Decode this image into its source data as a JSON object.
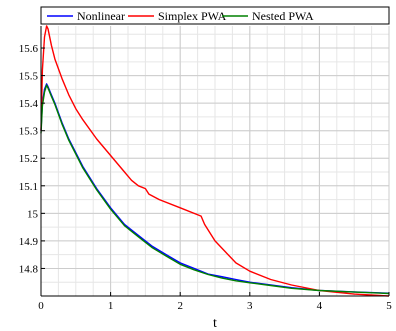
{
  "chart_data": {
    "type": "line",
    "xlabel": "t",
    "ylabel": "",
    "xlim": [
      0,
      5
    ],
    "ylim": [
      14.7,
      15.68
    ],
    "xticks": [
      0,
      1,
      2,
      3,
      4,
      5
    ],
    "yticks": [
      14.8,
      14.9,
      15,
      15.1,
      15.2,
      15.3,
      15.4,
      15.5,
      15.6
    ],
    "ytick_labels": [
      "14.8",
      "14.9",
      "15",
      "15.1",
      "15.2",
      "15.3",
      "15.4",
      "15.5",
      "15.6"
    ],
    "grid": true,
    "legend_position": "top",
    "series": [
      {
        "name": "Nonlinear",
        "color": "#0000ff",
        "x": [
          0,
          0.02,
          0.05,
          0.08,
          0.1,
          0.15,
          0.2,
          0.3,
          0.4,
          0.5,
          0.6,
          0.8,
          1.0,
          1.2,
          1.4,
          1.6,
          1.8,
          2.0,
          2.2,
          2.4,
          2.6,
          2.8,
          3.0,
          3.3,
          3.6,
          4.0,
          4.5,
          5.0
        ],
        "y": [
          15.3,
          15.4,
          15.45,
          15.47,
          15.46,
          15.43,
          15.4,
          15.33,
          15.27,
          15.22,
          15.17,
          15.09,
          15.02,
          14.96,
          14.92,
          14.88,
          14.85,
          14.82,
          14.8,
          14.78,
          14.77,
          14.76,
          14.75,
          14.74,
          14.73,
          14.72,
          14.715,
          14.71
        ]
      },
      {
        "name": "Simplex PWA",
        "color": "#ff0000",
        "x": [
          0,
          0.02,
          0.05,
          0.08,
          0.1,
          0.15,
          0.2,
          0.3,
          0.4,
          0.5,
          0.6,
          0.8,
          1.0,
          1.2,
          1.3,
          1.4,
          1.5,
          1.55,
          1.7,
          2.0,
          2.3,
          2.35,
          2.5,
          2.8,
          3.0,
          3.3,
          3.6,
          4.0,
          4.5,
          5.0
        ],
        "y": [
          15.3,
          15.52,
          15.64,
          15.68,
          15.67,
          15.61,
          15.56,
          15.49,
          15.43,
          15.38,
          15.34,
          15.27,
          15.21,
          15.15,
          15.12,
          15.1,
          15.09,
          15.07,
          15.05,
          15.02,
          14.99,
          14.96,
          14.9,
          14.82,
          14.79,
          14.76,
          14.74,
          14.72,
          14.707,
          14.7
        ]
      },
      {
        "name": "Nested PWA",
        "color": "#008000",
        "x": [
          0,
          0.02,
          0.05,
          0.08,
          0.1,
          0.15,
          0.2,
          0.3,
          0.4,
          0.5,
          0.6,
          0.8,
          1.0,
          1.2,
          1.4,
          1.6,
          1.8,
          2.0,
          2.2,
          2.4,
          2.6,
          2.8,
          3.0,
          3.3,
          3.6,
          4.0,
          4.5,
          5.0
        ],
        "y": [
          15.29,
          15.39,
          15.44,
          15.465,
          15.455,
          15.425,
          15.395,
          15.325,
          15.265,
          15.215,
          15.165,
          15.085,
          15.015,
          14.955,
          14.915,
          14.875,
          14.845,
          14.815,
          14.795,
          14.778,
          14.765,
          14.755,
          14.748,
          14.738,
          14.728,
          14.72,
          14.714,
          14.709
        ]
      }
    ]
  }
}
